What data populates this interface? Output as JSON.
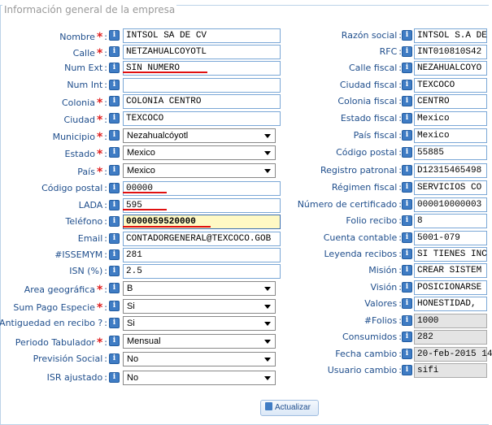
{
  "title": "Información general de la empresa",
  "left_fields": [
    {
      "key": "nombre",
      "label": "Nombre",
      "required": true,
      "type": "text",
      "value": "INTSOL SA DE CV"
    },
    {
      "key": "calle",
      "label": "Calle",
      "required": true,
      "type": "text",
      "value": "NETZAHUALCOYOTL"
    },
    {
      "key": "num_ext",
      "label": "Num Ext",
      "required": false,
      "type": "text",
      "value": "SIN NUMERO"
    },
    {
      "key": "num_int",
      "label": "Num Int",
      "required": false,
      "type": "text",
      "value": ""
    },
    {
      "key": "colonia",
      "label": "Colonia",
      "required": true,
      "type": "text",
      "value": "COLONIA CENTRO"
    },
    {
      "key": "ciudad",
      "label": "Ciudad",
      "required": true,
      "type": "text",
      "value": "TEXCOCO"
    },
    {
      "key": "municipio",
      "label": "Municipio",
      "required": true,
      "type": "select",
      "value": "Nezahualcóyotl"
    },
    {
      "key": "estado",
      "label": "Estado",
      "required": true,
      "type": "select",
      "value": "Mexico"
    },
    {
      "key": "pais",
      "label": "País",
      "required": true,
      "type": "select",
      "value": "Mexico"
    },
    {
      "key": "codigo_postal",
      "label": "Código postal",
      "required": false,
      "type": "text",
      "value": "00000"
    },
    {
      "key": "lada",
      "label": "LADA",
      "required": false,
      "type": "text",
      "value": "595"
    },
    {
      "key": "telefono",
      "label": "Teléfono",
      "required": false,
      "type": "text",
      "value": "0000059520000",
      "highlight": true
    },
    {
      "key": "email",
      "label": "Email",
      "required": false,
      "type": "text",
      "value": "CONTADORGENERAL@TEXCOCO.GOB"
    },
    {
      "key": "issemym",
      "label": "#ISSEMYM",
      "required": false,
      "type": "text",
      "value": "281"
    },
    {
      "key": "isn",
      "label": "ISN (%)",
      "required": false,
      "type": "text",
      "value": "2.5"
    },
    {
      "key": "area_geografica",
      "label": "Area geográfica",
      "required": true,
      "type": "select",
      "value": "B"
    },
    {
      "key": "sum_pago_especie",
      "label": "Sum Pago Especie",
      "required": true,
      "type": "select",
      "value": "Si"
    },
    {
      "key": "antiguedad_recibo",
      "label": "Antiguedad en recibo ?",
      "required": false,
      "type": "select",
      "value": "Si"
    },
    {
      "key": "periodo_tabulador",
      "label": "Periodo Tabulador",
      "required": true,
      "type": "select",
      "value": "Mensual"
    },
    {
      "key": "prevision_social",
      "label": "Previsión Social",
      "required": false,
      "type": "select",
      "value": "No"
    },
    {
      "key": "isr_ajustado",
      "label": "ISR ajustado",
      "required": false,
      "type": "select",
      "value": "No"
    }
  ],
  "right_fields": [
    {
      "key": "razon_social",
      "label": "Razón social",
      "value": "INTSOL S.A  DE",
      "readonly": false
    },
    {
      "key": "rfc",
      "label": "RFC",
      "value": "INT010810S42",
      "readonly": false
    },
    {
      "key": "calle_fiscal",
      "label": "Calle fiscal",
      "value": "NEZAHUALCOYO",
      "readonly": false
    },
    {
      "key": "ciudad_fiscal",
      "label": "Ciudad fiscal",
      "value": "TEXCOCO",
      "readonly": false
    },
    {
      "key": "colonia_fiscal",
      "label": "Colonia fiscal",
      "value": "CENTRO",
      "readonly": false
    },
    {
      "key": "estado_fiscal",
      "label": "Estado fiscal",
      "value": " Mexico",
      "readonly": false
    },
    {
      "key": "pais_fiscal",
      "label": "País fiscal",
      "value": " Mexico",
      "readonly": false
    },
    {
      "key": "codigo_postal_fiscal",
      "label": "Código postal",
      "value": "55885",
      "readonly": false
    },
    {
      "key": "registro_patronal",
      "label": "Registro patronal",
      "value": "D12315465498",
      "readonly": false
    },
    {
      "key": "regimen_fiscal",
      "label": "Régimen fiscal",
      "value": "SERVICIOS CO",
      "readonly": false
    },
    {
      "key": "numero_certificado",
      "label": "Número de certificado",
      "value": "000010000003",
      "readonly": false
    },
    {
      "key": "folio_recibo",
      "label": "Folio recibo",
      "value": "8",
      "readonly": false
    },
    {
      "key": "cuenta_contable",
      "label": "Cuenta contable",
      "value": "5001-079",
      "readonly": false
    },
    {
      "key": "leyenda_recibos",
      "label": "Leyenda recibos",
      "value": "SI TIENES INC",
      "readonly": false
    },
    {
      "key": "mision",
      "label": "Misión",
      "value": "CREAR SISTEM",
      "readonly": false
    },
    {
      "key": "vision",
      "label": "Visión",
      "value": "POSICIONARSE",
      "readonly": false
    },
    {
      "key": "valores",
      "label": "Valores",
      "value": "HONESTIDAD,",
      "readonly": false
    },
    {
      "key": "folios",
      "label": "#Folios",
      "value": "1000",
      "readonly": true
    },
    {
      "key": "consumidos",
      "label": "Consumidos",
      "value": "282",
      "readonly": true
    },
    {
      "key": "fecha_cambio",
      "label": "Fecha cambio",
      "value": "20-feb-2015 14",
      "readonly": true
    },
    {
      "key": "usuario_cambio",
      "label": "Usuario cambio",
      "value": "sifi",
      "readonly": true
    }
  ],
  "info_glyph": "i",
  "required_marker": "*",
  "colon": ":",
  "submit_label": "Actualizar",
  "colors": {
    "label": "#1f4e8c",
    "required": "#e02020",
    "info": "#3f7cc4",
    "field_border": "#7aa7d6",
    "highlight": "#fff9c4",
    "annotation": "#e01010"
  },
  "icons": {
    "info": "info-icon",
    "submit": "save-icon",
    "dropdown": "chevron-down-icon"
  }
}
